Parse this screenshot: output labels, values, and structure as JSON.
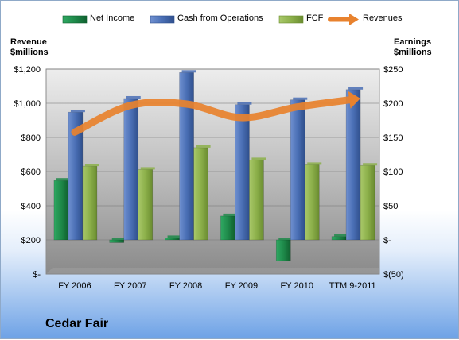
{
  "chart_data": {
    "type": "bar",
    "categories": [
      "FY 2006",
      "FY 2007",
      "FY 2008",
      "FY 2009",
      "FY 2010",
      "TTM 9-2011"
    ],
    "series": [
      {
        "name": "Net Income",
        "axis": "right",
        "kind": "bar",
        "color": "#1e8a4a",
        "values": [
          87,
          -4,
          3,
          35,
          -31,
          5
        ]
      },
      {
        "name": "Cash from Operations",
        "axis": "right",
        "kind": "bar",
        "color": "#4a6fb5",
        "values": [
          187,
          207,
          245,
          198,
          205,
          220
        ]
      },
      {
        "name": "FCF",
        "axis": "right",
        "kind": "bar",
        "color": "#8cb04a",
        "values": [
          108,
          103,
          135,
          117,
          110,
          109
        ]
      },
      {
        "name": "Revenues",
        "axis": "left",
        "kind": "line",
        "color": "#e8822e",
        "values": [
          831,
          987,
          996,
          916,
          978,
          1022
        ]
      }
    ],
    "left_axis": {
      "title_line1": "Revenue",
      "title_line2": "$millions",
      "ylim": [
        0,
        1200
      ],
      "ticks": [
        "$-",
        "$200",
        "$400",
        "$600",
        "$800",
        "$1,000",
        "$1,200"
      ]
    },
    "right_axis": {
      "title_line1": "Earnings",
      "title_line2": "$millions",
      "ylim": [
        -50,
        250
      ],
      "ticks": [
        "$(50)",
        "$-",
        "$50",
        "$100",
        "$150",
        "$200",
        "$250"
      ]
    },
    "legend_position": "top",
    "grid": true,
    "company": "Cedar Fair"
  }
}
